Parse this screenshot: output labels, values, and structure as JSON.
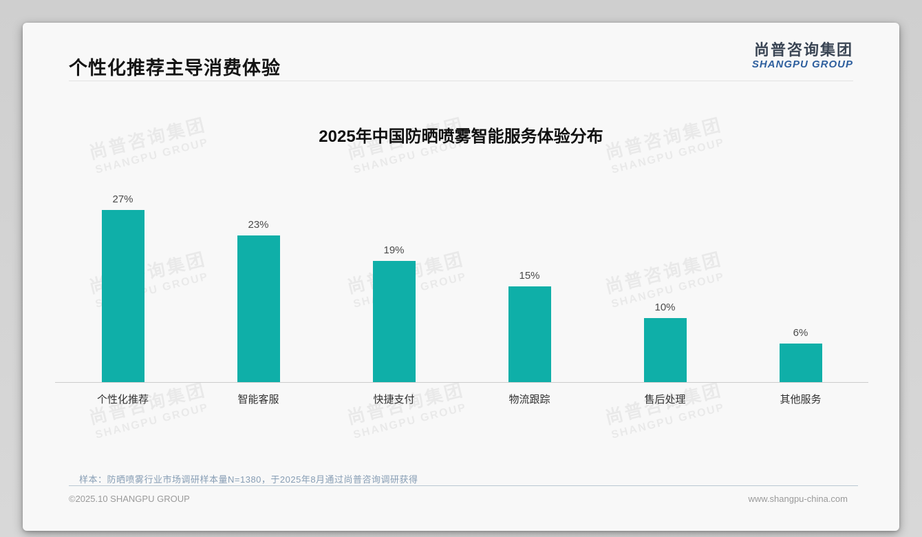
{
  "page": {
    "title": "个性化推荐主导消费体验",
    "logo": {
      "cn": "尚普咨询集团",
      "en": "SHANGPU GROUP"
    },
    "watermark": {
      "cn": "尚普咨询集团",
      "en": "SHANGPU GROUP"
    },
    "footer": {
      "note": "样本：防晒喷雾行业市场调研样本量N=1380，于2025年8月通过尚普咨询调研获得",
      "copyright": "©2025.10 SHANGPU GROUP",
      "website": "www.shangpu-china.com"
    }
  },
  "chart_data": {
    "type": "bar",
    "title": "2025年中国防晒喷雾智能服务体验分布",
    "categories": [
      "个性化推荐",
      "智能客服",
      "快捷支付",
      "物流跟踪",
      "售后处理",
      "其他服务"
    ],
    "values": [
      27,
      23,
      19,
      15,
      10,
      6
    ],
    "value_labels": [
      "27%",
      "23%",
      "19%",
      "15%",
      "10%",
      "6%"
    ],
    "unit": "%",
    "bar_color": "#0fafa8",
    "ylim": [
      0,
      30
    ],
    "grid": false,
    "legend_position": "none"
  }
}
